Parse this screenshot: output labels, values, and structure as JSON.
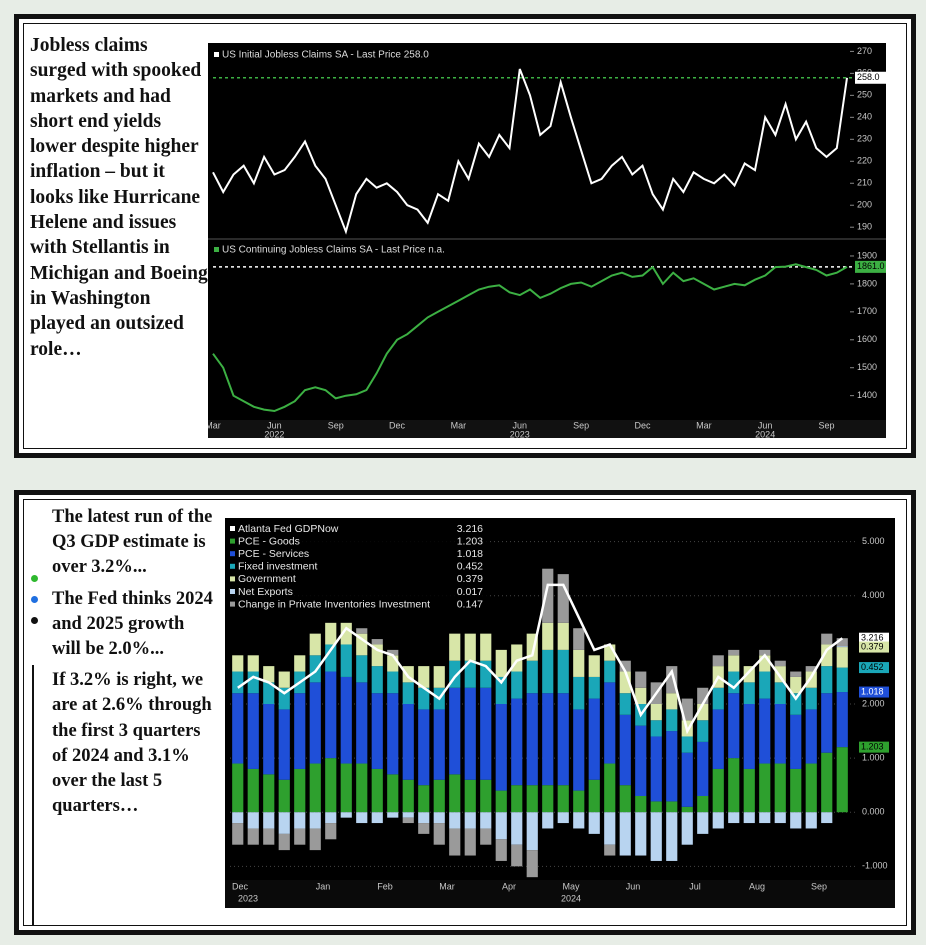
{
  "texts": {
    "panel1": "Jobless claims surged with spooked markets and had short end yields lower despite higher inflation – but it looks like Hurricane Helene and issues with Stellantis in Michigan and Boeing in Washington played an outsized role…",
    "panel2": [
      "The latest run of the Q3 GDP estimate is over 3.2%...",
      "The Fed thinks 2024 and 2025 growth will be 2.0%...",
      "If 3.2% is right, we are at 2.6% through the first 3 quarters of 2024 and 3.1% over the last 5 quarters…"
    ]
  },
  "chart_data": [
    {
      "type": "line",
      "categories": [
        "Mar",
        null,
        null,
        null,
        null,
        null,
        "Jun",
        null,
        null,
        null,
        null,
        null,
        "Sep",
        null,
        null,
        null,
        null,
        null,
        "Dec",
        null,
        null,
        null,
        null,
        null,
        "Mar",
        null,
        null,
        null,
        null,
        null,
        "Jun",
        null,
        null,
        null,
        null,
        null,
        "Sep",
        null,
        null,
        null,
        null,
        null,
        "Dec",
        null,
        null,
        null,
        null,
        null,
        "Mar",
        null,
        null,
        null,
        null,
        null,
        "Jun",
        null,
        null,
        null,
        null,
        null,
        "Sep",
        null,
        null
      ],
      "group_labels": [
        "2022",
        "2023",
        "2024"
      ],
      "series": [
        {
          "name": "US Initial Jobless Claims SA - Last Price 258.0",
          "color": "#ffffff",
          "last_label": "258.0",
          "ylim": [
            186,
            272
          ],
          "yticks": [
            190,
            200,
            210,
            220,
            230,
            240,
            250,
            260,
            270
          ],
          "values": [
            215,
            206,
            214,
            218,
            210,
            222,
            214,
            216,
            222,
            229,
            218,
            212,
            200,
            188,
            205,
            212,
            208,
            210,
            206,
            200,
            198,
            192,
            205,
            202,
            220,
            212,
            228,
            222,
            232,
            226,
            262,
            250,
            232,
            236,
            256,
            240,
            225,
            210,
            212,
            218,
            222,
            214,
            218,
            205,
            198,
            212,
            206,
            215,
            212,
            210,
            214,
            209,
            219,
            216,
            240,
            232,
            246,
            230,
            238,
            226,
            222,
            226,
            258
          ]
        },
        {
          "name": "US Continuing Jobless Claims SA - Last Price n.a.",
          "color": "#3cb043",
          "last_label": "1861.0",
          "ylim": [
            1320,
            1950
          ],
          "yticks": [
            1400,
            1500,
            1600,
            1700,
            1800,
            1900
          ],
          "values": [
            1550,
            1500,
            1400,
            1380,
            1360,
            1350,
            1345,
            1360,
            1380,
            1420,
            1430,
            1420,
            1390,
            1400,
            1405,
            1420,
            1480,
            1550,
            1600,
            1620,
            1650,
            1680,
            1700,
            1720,
            1740,
            1760,
            1780,
            1790,
            1795,
            1770,
            1760,
            1780,
            1750,
            1765,
            1785,
            1800,
            1805,
            1790,
            1810,
            1830,
            1840,
            1825,
            1830,
            1860,
            1800,
            1840,
            1810,
            1820,
            1800,
            1780,
            1790,
            1800,
            1795,
            1815,
            1830,
            1860,
            1862,
            1870,
            1860,
            1850,
            1830,
            1840,
            1861
          ]
        }
      ]
    },
    {
      "type": "bar",
      "stacked": true,
      "categories": [
        "Dec",
        null,
        null,
        null,
        "Jan",
        null,
        null,
        null,
        "Feb",
        null,
        null,
        null,
        "Mar",
        null,
        null,
        null,
        "Apr",
        null,
        null,
        null,
        "May",
        null,
        null,
        null,
        "Jun",
        null,
        null,
        null,
        "Jul",
        null,
        null,
        null,
        "Aug",
        null,
        null,
        null,
        "Sep",
        null,
        null,
        null
      ],
      "group_labels": [
        "2023",
        "2024"
      ],
      "ylim": [
        -1.4,
        5.4
      ],
      "yticks": [
        {
          "value": -1,
          "label": "-1.000"
        },
        {
          "value": 0,
          "label": "0.000"
        },
        {
          "value": 1,
          "label": "1.000"
        },
        {
          "value": 2,
          "label": "2.000"
        },
        {
          "value": 4,
          "label": "4.000"
        },
        {
          "value": 5,
          "label": "5.000"
        }
      ],
      "series": [
        {
          "name": "Atlanta Fed GDPNow",
          "type": "line",
          "color": "#ffffff",
          "tagged": true,
          "values": [
            2.3,
            2.5,
            2.4,
            2.2,
            2.4,
            2.6,
            3.0,
            3.4,
            3.2,
            3.0,
            2.9,
            2.5,
            2.3,
            2.1,
            2.5,
            2.8,
            2.7,
            2.4,
            2.8,
            2.9,
            4.2,
            4.2,
            3.6,
            3.0,
            3.1,
            2.6,
            1.8,
            2.2,
            2.6,
            1.5,
            2.0,
            2.5,
            2.3,
            2.6,
            2.9,
            2.5,
            2.1,
            2.5,
            3.0,
            3.216
          ]
        },
        {
          "name": "PCE - Goods",
          "color": "#2ea02e",
          "tagged": true,
          "values": [
            0.9,
            0.8,
            0.7,
            0.6,
            0.8,
            0.9,
            1.0,
            0.9,
            0.9,
            0.8,
            0.7,
            0.6,
            0.5,
            0.6,
            0.7,
            0.6,
            0.6,
            0.4,
            0.5,
            0.5,
            0.5,
            0.5,
            0.4,
            0.6,
            0.9,
            0.5,
            0.3,
            0.2,
            0.2,
            0.1,
            0.3,
            0.8,
            1.0,
            0.8,
            0.9,
            0.9,
            0.8,
            0.9,
            1.1,
            1.203
          ]
        },
        {
          "name": "PCE - Services",
          "color": "#1f4fd8",
          "tagged": true,
          "values": [
            1.3,
            1.4,
            1.3,
            1.3,
            1.4,
            1.5,
            1.6,
            1.6,
            1.5,
            1.4,
            1.5,
            1.4,
            1.4,
            1.3,
            1.6,
            1.7,
            1.7,
            1.6,
            1.6,
            1.7,
            1.7,
            1.7,
            1.5,
            1.5,
            1.5,
            1.3,
            1.3,
            1.2,
            1.3,
            1.0,
            1.0,
            1.1,
            1.2,
            1.2,
            1.2,
            1.1,
            1.0,
            1.0,
            1.1,
            1.018
          ]
        },
        {
          "name": "Fixed investment",
          "color": "#1aa7b8",
          "tagged": true,
          "values": [
            0.4,
            0.4,
            0.4,
            0.4,
            0.4,
            0.5,
            0.5,
            0.6,
            0.5,
            0.5,
            0.4,
            0.4,
            0.4,
            0.4,
            0.5,
            0.5,
            0.5,
            0.5,
            0.5,
            0.6,
            0.8,
            0.8,
            0.6,
            0.4,
            0.4,
            0.4,
            0.4,
            0.3,
            0.4,
            0.3,
            0.4,
            0.4,
            0.4,
            0.4,
            0.5,
            0.4,
            0.4,
            0.4,
            0.5,
            0.452
          ]
        },
        {
          "name": "Government",
          "color": "#d8e6a8",
          "tagged": true,
          "values": [
            0.3,
            0.3,
            0.3,
            0.3,
            0.3,
            0.4,
            0.4,
            0.4,
            0.4,
            0.4,
            0.3,
            0.3,
            0.4,
            0.4,
            0.5,
            0.5,
            0.5,
            0.5,
            0.5,
            0.5,
            0.5,
            0.5,
            0.5,
            0.4,
            0.3,
            0.4,
            0.3,
            0.3,
            0.3,
            0.3,
            0.3,
            0.4,
            0.3,
            0.3,
            0.3,
            0.3,
            0.3,
            0.3,
            0.4,
            0.379
          ]
        },
        {
          "name": "Net Exports",
          "color": "#b8d4f0",
          "values": [
            -0.2,
            -0.3,
            -0.3,
            -0.4,
            -0.3,
            -0.3,
            -0.2,
            -0.1,
            -0.2,
            -0.2,
            -0.1,
            -0.1,
            -0.2,
            -0.2,
            -0.3,
            -0.3,
            -0.3,
            -0.5,
            -0.6,
            -0.7,
            -0.3,
            -0.2,
            -0.3,
            -0.4,
            -0.6,
            -0.8,
            -0.8,
            -0.9,
            -0.9,
            -0.6,
            -0.4,
            -0.3,
            -0.2,
            -0.2,
            -0.2,
            -0.2,
            -0.3,
            -0.3,
            -0.2,
            0.017
          ]
        },
        {
          "name": "Change in Private Inventories Investment",
          "color": "#9a9a9a",
          "values": [
            -0.4,
            -0.3,
            -0.3,
            -0.3,
            -0.3,
            -0.4,
            -0.3,
            0.0,
            0.1,
            0.1,
            0.1,
            -0.1,
            -0.2,
            -0.4,
            -0.5,
            -0.5,
            -0.3,
            -0.4,
            -0.4,
            -0.5,
            1.0,
            0.9,
            0.4,
            0.0,
            -0.2,
            0.2,
            0.3,
            0.4,
            0.5,
            0.4,
            0.3,
            0.2,
            0.1,
            0.0,
            0.1,
            0.1,
            0.1,
            0.1,
            0.2,
            0.147
          ]
        }
      ]
    }
  ]
}
